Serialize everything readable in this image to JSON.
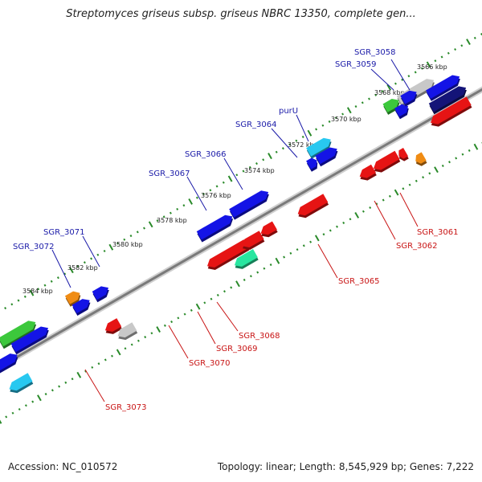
{
  "title": "Streptomyces griseus subsp. griseus NBRC 13350, complete gen...",
  "footer": {
    "accession": "Accession: NC_010572",
    "summary": "Topology: linear; Length: 8,545,929 bp; Genes: 7,222"
  },
  "colors": {
    "backbone": "#8a8a8a",
    "ticks": "#2a8a2a",
    "forward_label": "#1a1aa8",
    "reverse_label": "#c81414",
    "blue": "#1414e6",
    "red": "#e61414",
    "green": "#3cc83c",
    "orange": "#f08c14",
    "gray": "#c8c8c8",
    "cyan": "#28c8f0",
    "teal": "#28e6a0",
    "navy": "#141478"
  },
  "scale_labels": [
    "3566 kbp",
    "3568 kbp",
    "3570 kbp",
    "3572 kbp",
    "3574 kbp",
    "3576 kbp",
    "3578 kbp",
    "3580 kbp",
    "3582 kbp",
    "3584 kbp"
  ],
  "forward_gene_labels": [
    "SGR_3058",
    "SGR_3059",
    "purU",
    "SGR_3064",
    "SGR_3066",
    "SGR_3067",
    "SGR_3071",
    "SGR_3072"
  ],
  "reverse_gene_labels": [
    "SGR_3061",
    "SGR_3062",
    "SGR_3065",
    "SGR_3068",
    "SGR_3069",
    "SGR_3070",
    "SGR_3073"
  ]
}
